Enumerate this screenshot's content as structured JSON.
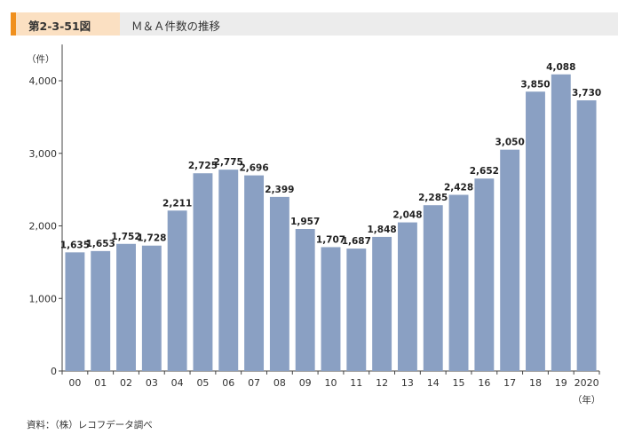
{
  "header": {
    "figure_label": "第2-3-51図",
    "title": "Ｍ＆Ａ件数の推移"
  },
  "source": "資料：（株）レコフデータ調べ",
  "colors": {
    "bar": "#8aa0c3",
    "accent": "#f0901e",
    "label_box": "#fbe0c2",
    "header_bar": "#ececec"
  },
  "chart_data": {
    "type": "bar",
    "categories": [
      "00",
      "01",
      "02",
      "03",
      "04",
      "05",
      "06",
      "07",
      "08",
      "09",
      "10",
      "11",
      "12",
      "13",
      "14",
      "15",
      "16",
      "17",
      "18",
      "19",
      "2020"
    ],
    "values": [
      1635,
      1653,
      1752,
      1728,
      2211,
      2725,
      2775,
      2696,
      2399,
      1957,
      1707,
      1687,
      1848,
      2048,
      2285,
      2428,
      2652,
      3050,
      3850,
      4088,
      3730
    ],
    "value_labels": [
      "1,635",
      "1,653",
      "1,752",
      "1,728",
      "2,211",
      "2,725",
      "2,775",
      "2,696",
      "2,399",
      "1,957",
      "1,707",
      "1,687",
      "1,848",
      "2,048",
      "2,285",
      "2,428",
      "2,652",
      "3,050",
      "3,850",
      "4,088",
      "3,730"
    ],
    "y_ticks": [
      0,
      1000,
      2000,
      3000,
      4000
    ],
    "y_tick_labels": [
      "0",
      "1,000",
      "2,000",
      "3,000",
      "4,000"
    ],
    "ylim": [
      0,
      4500
    ],
    "ylabel": "（件）",
    "xlabel": "（年）",
    "grid": false,
    "legend": "none"
  }
}
